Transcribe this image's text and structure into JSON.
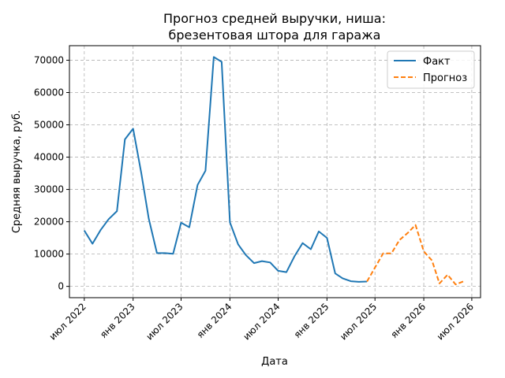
{
  "chart_data": {
    "type": "line",
    "title_lines": [
      "Прогноз средней выручки, ниша:",
      "брезентовая штора для гаража"
    ],
    "xlabel": "Дата",
    "ylabel": "Средняя выручка, руб.",
    "x_range": [
      "2022-05-06",
      "2026-08-03"
    ],
    "ylim": [
      -3500,
      74500
    ],
    "y_ticks": [
      0,
      10000,
      20000,
      30000,
      40000,
      50000,
      60000,
      70000
    ],
    "x_ticks": [
      {
        "date": "2022-07-01",
        "label": "июл 2022"
      },
      {
        "date": "2023-01-01",
        "label": "янв 2023"
      },
      {
        "date": "2023-07-01",
        "label": "июл 2023"
      },
      {
        "date": "2024-01-01",
        "label": "янв 2024"
      },
      {
        "date": "2024-07-01",
        "label": "июл 2024"
      },
      {
        "date": "2025-01-01",
        "label": "янв 2025"
      },
      {
        "date": "2025-07-01",
        "label": "июл 2025"
      },
      {
        "date": "2026-01-01",
        "label": "янв 2026"
      },
      {
        "date": "2026-07-01",
        "label": "июл 2026"
      }
    ],
    "grid": true,
    "legend_position": "top-right",
    "series": [
      {
        "name": "Факт",
        "color": "#1f77b4",
        "style": "solid",
        "points": [
          {
            "x": "2022-07-01",
            "y": 17300
          },
          {
            "x": "2022-08-01",
            "y": 13200
          },
          {
            "x": "2022-09-01",
            "y": 17500
          },
          {
            "x": "2022-10-01",
            "y": 20800
          },
          {
            "x": "2022-11-01",
            "y": 23300
          },
          {
            "x": "2022-12-01",
            "y": 45500
          },
          {
            "x": "2023-01-01",
            "y": 48800
          },
          {
            "x": "2023-02-01",
            "y": 35000
          },
          {
            "x": "2023-03-01",
            "y": 21000
          },
          {
            "x": "2023-04-01",
            "y": 10300
          },
          {
            "x": "2023-05-01",
            "y": 10300
          },
          {
            "x": "2023-06-01",
            "y": 10100
          },
          {
            "x": "2023-07-01",
            "y": 19700
          },
          {
            "x": "2023-08-01",
            "y": 18300
          },
          {
            "x": "2023-09-01",
            "y": 31400
          },
          {
            "x": "2023-10-01",
            "y": 35800
          },
          {
            "x": "2023-11-01",
            "y": 71000
          },
          {
            "x": "2023-12-01",
            "y": 69500
          },
          {
            "x": "2024-01-01",
            "y": 19800
          },
          {
            "x": "2024-02-01",
            "y": 13000
          },
          {
            "x": "2024-03-01",
            "y": 9700
          },
          {
            "x": "2024-04-01",
            "y": 7200
          },
          {
            "x": "2024-05-01",
            "y": 7800
          },
          {
            "x": "2024-06-01",
            "y": 7400
          },
          {
            "x": "2024-07-01",
            "y": 4800
          },
          {
            "x": "2024-08-01",
            "y": 4400
          },
          {
            "x": "2024-09-01",
            "y": 9400
          },
          {
            "x": "2024-10-01",
            "y": 13400
          },
          {
            "x": "2024-11-01",
            "y": 11500
          },
          {
            "x": "2024-12-01",
            "y": 17000
          },
          {
            "x": "2025-01-01",
            "y": 15000
          },
          {
            "x": "2025-02-01",
            "y": 4000
          },
          {
            "x": "2025-03-01",
            "y": 2500
          },
          {
            "x": "2025-04-01",
            "y": 1600
          },
          {
            "x": "2025-05-01",
            "y": 1400
          },
          {
            "x": "2025-06-01",
            "y": 1500
          }
        ]
      },
      {
        "name": "Прогноз",
        "color": "#ff7f0e",
        "style": "dashed",
        "points": [
          {
            "x": "2025-06-01",
            "y": 1500
          },
          {
            "x": "2025-07-01",
            "y": 5800
          },
          {
            "x": "2025-08-01",
            "y": 10200
          },
          {
            "x": "2025-09-01",
            "y": 10200
          },
          {
            "x": "2025-10-01",
            "y": 14300
          },
          {
            "x": "2025-11-01",
            "y": 16500
          },
          {
            "x": "2025-12-01",
            "y": 19000
          },
          {
            "x": "2026-01-01",
            "y": 10800
          },
          {
            "x": "2026-02-01",
            "y": 8000
          },
          {
            "x": "2026-03-01",
            "y": 900
          },
          {
            "x": "2026-04-01",
            "y": 3600
          },
          {
            "x": "2026-05-01",
            "y": 600
          },
          {
            "x": "2026-06-01",
            "y": 1600
          }
        ]
      }
    ]
  }
}
